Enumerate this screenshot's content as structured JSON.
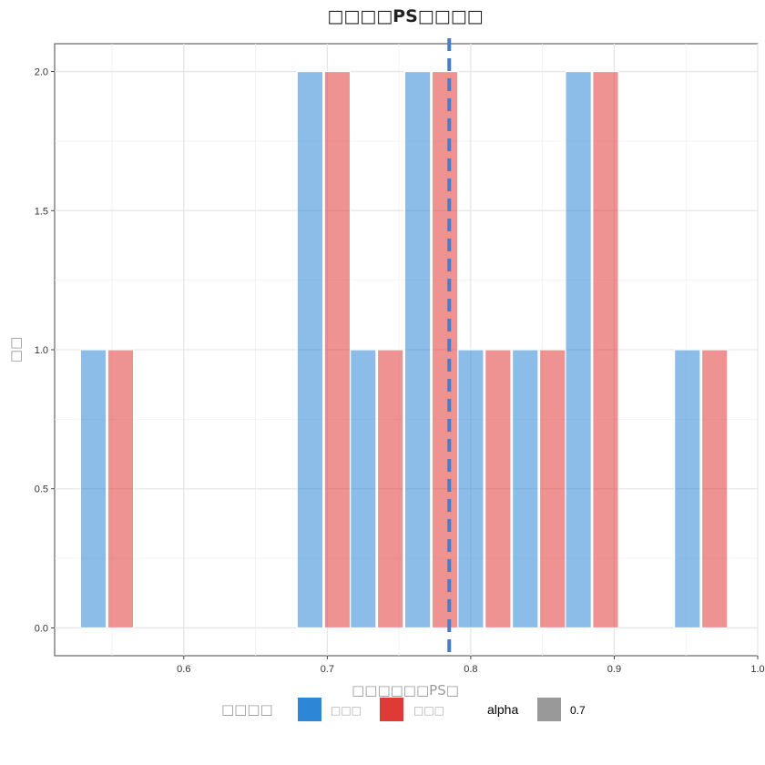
{
  "chart_data": {
    "type": "bar",
    "title": "□□□□PS□□□□",
    "xlabel": "□□□□□□PS□",
    "ylabel": "□□",
    "xlim": [
      0.51,
      1.0
    ],
    "ylim": [
      -0.1,
      2.1
    ],
    "x_ticks": [
      0.6,
      0.7,
      0.8,
      0.9,
      1.0
    ],
    "x_tick_labels": [
      "0.6",
      "0.7",
      "0.8",
      "0.9",
      "1.0"
    ],
    "y_ticks": [
      0,
      0.5,
      1,
      1.5,
      2
    ],
    "y_tick_labels": [
      "0.0",
      "0.5",
      "1.0",
      "1.5",
      "2.0"
    ],
    "grid": true,
    "bin_width": 0.037,
    "series": [
      {
        "name": "□□□",
        "color": "#2e86d6",
        "bins": [
          {
            "x0": 0.528,
            "x1": 0.546,
            "value": 1
          },
          {
            "x0": 0.679,
            "x1": 0.697,
            "value": 2
          },
          {
            "x0": 0.716,
            "x1": 0.734,
            "value": 1
          },
          {
            "x0": 0.754,
            "x1": 0.772,
            "value": 2
          },
          {
            "x0": 0.791,
            "x1": 0.809,
            "value": 1
          },
          {
            "x0": 0.829,
            "x1": 0.847,
            "value": 1
          },
          {
            "x0": 0.866,
            "x1": 0.884,
            "value": 2
          },
          {
            "x0": 0.942,
            "x1": 0.96,
            "value": 1
          }
        ]
      },
      {
        "name": "□□□",
        "color": "#e03a36",
        "bins": [
          {
            "x0": 0.547,
            "x1": 0.565,
            "value": 1
          },
          {
            "x0": 0.698,
            "x1": 0.716,
            "value": 2
          },
          {
            "x0": 0.735,
            "x1": 0.753,
            "value": 1
          },
          {
            "x0": 0.773,
            "x1": 0.791,
            "value": 2
          },
          {
            "x0": 0.81,
            "x1": 0.828,
            "value": 1
          },
          {
            "x0": 0.848,
            "x1": 0.866,
            "value": 1
          },
          {
            "x0": 0.885,
            "x1": 0.903,
            "value": 2
          },
          {
            "x0": 0.961,
            "x1": 0.979,
            "value": 1
          }
        ]
      }
    ],
    "vline": {
      "x": 0.785,
      "color": "#4a7cc4",
      "style": "dashed"
    },
    "legend": {
      "position": "bottom",
      "title": "□□□□",
      "items": [
        {
          "label": "□□□",
          "color": "#2e86d6"
        },
        {
          "label": "□□□",
          "color": "#e03a36"
        }
      ],
      "alpha_title": "alpha",
      "alpha_label": "0.7",
      "alpha_color": "#999999"
    },
    "alpha": 0.55
  }
}
